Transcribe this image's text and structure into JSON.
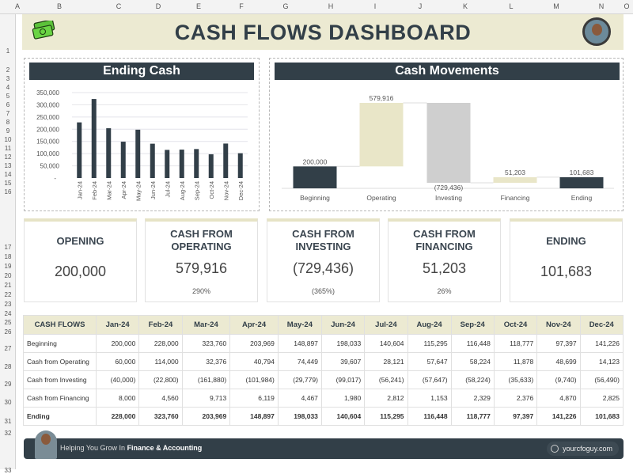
{
  "sheet": {
    "columns": [
      "A",
      "B",
      "C",
      "D",
      "E",
      "F",
      "G",
      "H",
      "I",
      "J",
      "K",
      "L",
      "M",
      "N",
      "O"
    ],
    "rows": [
      "1",
      "2",
      "3",
      "4",
      "5",
      "6",
      "7",
      "8",
      "9",
      "10",
      "11",
      "12",
      "13",
      "14",
      "15",
      "16",
      "17",
      "18",
      "19",
      "20",
      "21",
      "22",
      "23",
      "24",
      "25",
      "26",
      "27",
      "28",
      "29",
      "30",
      "31",
      "32",
      "33"
    ]
  },
  "header": {
    "title": "CASH FLOWS DASHBOARD",
    "logo_icon": "money-bills-icon",
    "avatar_icon": "profile-photo"
  },
  "colors": {
    "dark": "#323f48",
    "tan": "#ecead2",
    "gray": "#cfcfcf",
    "banner": "#ecead2"
  },
  "chart_data": [
    {
      "type": "bar",
      "title": "Ending Cash",
      "categories": [
        "Jan-24",
        "Feb-24",
        "Mar-24",
        "Apr-24",
        "May-24",
        "Jun-24",
        "Jul-24",
        "Aug-24",
        "Sep-24",
        "Oct-24",
        "Nov-24",
        "Dec-24"
      ],
      "values": [
        228000,
        323760,
        203969,
        148897,
        198033,
        140604,
        115295,
        116448,
        118777,
        97397,
        141226,
        101683
      ],
      "ylim": [
        0,
        350000
      ],
      "yticks": [
        "-",
        "50,000",
        "100,000",
        "150,000",
        "200,000",
        "250,000",
        "300,000",
        "350,000"
      ],
      "grid": true
    },
    {
      "type": "waterfall",
      "title": "Cash Movements",
      "categories": [
        "Beginning",
        "Operating",
        "Investing",
        "Financing",
        "Ending"
      ],
      "values": [
        200000,
        579916,
        -729436,
        51203,
        101683
      ],
      "labels": [
        "200,000",
        "579,916",
        "(729,436)",
        "51,203",
        "101,683"
      ],
      "kinds": [
        "total",
        "delta",
        "delta",
        "delta",
        "total"
      ]
    }
  ],
  "cards": [
    {
      "title": "OPENING",
      "value": "200,000",
      "pct": ""
    },
    {
      "title": "CASH FROM OPERATING",
      "value": "579,916",
      "pct": "290%"
    },
    {
      "title": "CASH FROM INVESTING",
      "value": "(729,436)",
      "pct": "(365%)"
    },
    {
      "title": "CASH FROM FINANCING",
      "value": "51,203",
      "pct": "26%"
    },
    {
      "title": "ENDING",
      "value": "101,683",
      "pct": ""
    }
  ],
  "table": {
    "headers": [
      "CASH FLOWS",
      "Jan-24",
      "Feb-24",
      "Mar-24",
      "Apr-24",
      "May-24",
      "Jun-24",
      "Jul-24",
      "Aug-24",
      "Sep-24",
      "Oct-24",
      "Nov-24",
      "Dec-24"
    ],
    "rows": [
      [
        "Beginning",
        "200,000",
        "228,000",
        "323,760",
        "203,969",
        "148,897",
        "198,033",
        "140,604",
        "115,295",
        "116,448",
        "118,777",
        "97,397",
        "141,226"
      ],
      [
        "Cash from Operating",
        "60,000",
        "114,000",
        "32,376",
        "40,794",
        "74,449",
        "39,607",
        "28,121",
        "57,647",
        "58,224",
        "11,878",
        "48,699",
        "14,123"
      ],
      [
        "Cash from Investing",
        "(40,000)",
        "(22,800)",
        "(161,880)",
        "(101,984)",
        "(29,779)",
        "(99,017)",
        "(56,241)",
        "(57,647)",
        "(58,224)",
        "(35,633)",
        "(9,740)",
        "(56,490)"
      ],
      [
        "Cash from Financing",
        "8,000",
        "4,560",
        "9,713",
        "6,119",
        "4,467",
        "1,980",
        "2,812",
        "1,153",
        "2,329",
        "2,376",
        "4,870",
        "2,825"
      ],
      [
        "Ending",
        "228,000",
        "323,760",
        "203,969",
        "148,897",
        "198,033",
        "140,604",
        "115,295",
        "116,448",
        "118,777",
        "97,397",
        "141,226",
        "101,683"
      ]
    ]
  },
  "footer": {
    "text_prefix": "Helping You Grow In ",
    "text_bold": "Finance & Accounting",
    "site": "yourcfoguy.com",
    "site_icon": "globe-icon"
  }
}
